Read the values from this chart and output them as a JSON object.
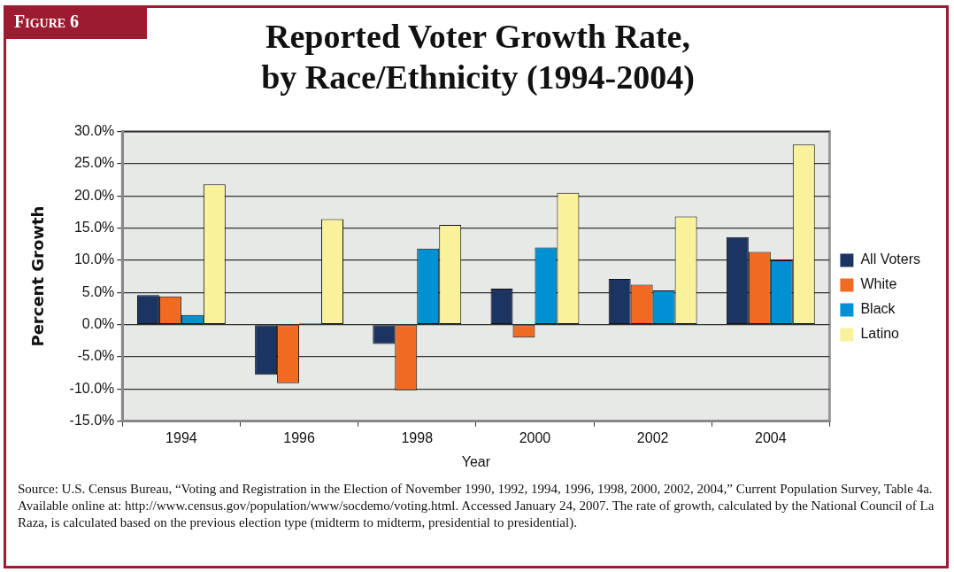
{
  "chart_data": {
    "type": "bar",
    "title": "Reported Voter Growth Rate, by Race/Ethnicity (1994-2004)",
    "xlabel": "Year",
    "ylabel": "Percent Growth",
    "categories": [
      "1994",
      "1996",
      "1998",
      "2000",
      "2002",
      "2004"
    ],
    "series": [
      {
        "name": "All Voters",
        "color": "#1c3461",
        "values": [
          4.6,
          -7.8,
          -3.0,
          5.6,
          7.1,
          13.6
        ]
      },
      {
        "name": "White",
        "color": "#f06a22",
        "values": [
          4.4,
          -9.1,
          -10.2,
          -2.0,
          6.2,
          11.3
        ]
      },
      {
        "name": "Black",
        "color": "#0090d4",
        "values": [
          1.5,
          0.2,
          11.8,
          12.0,
          5.3,
          10.0
        ]
      },
      {
        "name": "Latino",
        "color": "#f9f29b",
        "values": [
          21.8,
          16.4,
          15.5,
          20.5,
          16.8,
          28.0
        ]
      }
    ],
    "ylim": [
      -15,
      30
    ],
    "yticks": [
      {
        "value": -15,
        "label": "-15.0%"
      },
      {
        "value": -10,
        "label": "-10.0%"
      },
      {
        "value": -5,
        "label": "-5.0%"
      },
      {
        "value": 0,
        "label": "0.0%"
      },
      {
        "value": 5,
        "label": "5.0%"
      },
      {
        "value": 10,
        "label": "10.0%"
      },
      {
        "value": 15,
        "label": "15.0%"
      },
      {
        "value": 20,
        "label": "20.0%"
      },
      {
        "value": 25,
        "label": "25.0%"
      },
      {
        "value": 30,
        "label": "30.0%"
      }
    ],
    "grid": "y",
    "legend": "right",
    "annotations": [
      "Figure 6",
      "Source:  U.S. Census Bureau, “Voting and Registration in the Election of November 1990, 1992, 1994, 1996, 1998, 2000, 2002, 2004,” Current Population Survey, Table 4a.  Available online at: http://www.census.gov/population/www/socdemo/voting.html.  Accessed January 24, 2007.  The rate of growth, calculated by the National Council of La Raza, is calculated based on the previous election type (midterm to midterm, presidential to presidential)."
    ]
  }
}
